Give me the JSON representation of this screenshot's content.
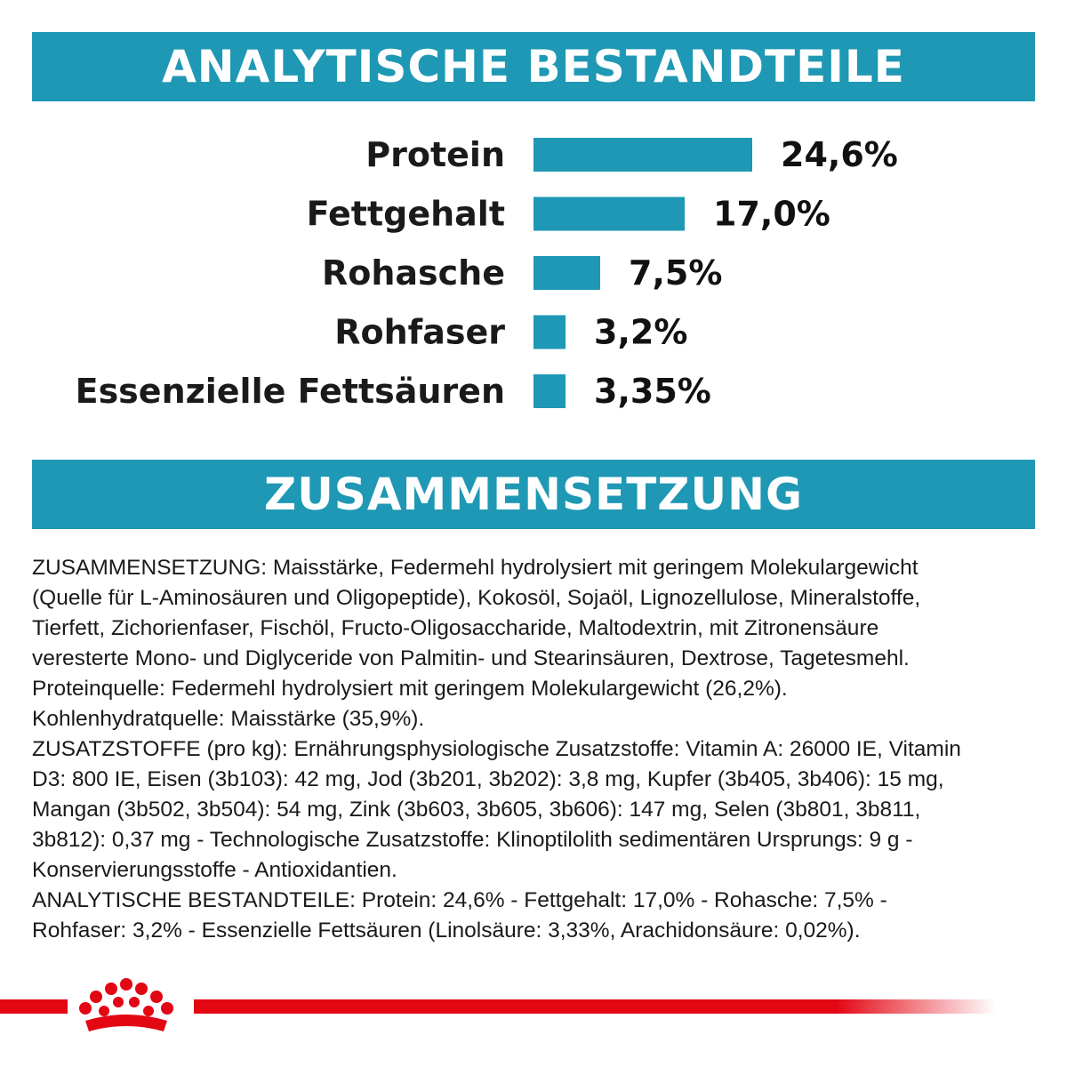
{
  "header": {
    "analytics_title": "ANALYTISCHE BESTANDTEILE",
    "composition_title": "ZUSAMMENSETZUNG"
  },
  "colors": {
    "banner": "#1e98b4",
    "bar": "#1e98b4",
    "brand_red": "#e30613"
  },
  "chart_data": {
    "type": "bar",
    "orientation": "horizontal",
    "title": "ANALYTISCHE BESTANDTEILE",
    "categories": [
      "Protein",
      "Fettgehalt",
      "Rohasche",
      "Rohfaser",
      "Essenzielle Fettsäuren"
    ],
    "values": [
      24.6,
      17.0,
      7.5,
      3.2,
      3.35
    ],
    "value_labels": [
      "24,6%",
      "17,0%",
      "7,5%",
      "3,2%",
      "3,35%"
    ],
    "xlim": [
      0,
      24.6
    ],
    "grid": false,
    "legend": "none"
  },
  "composition": {
    "lines": [
      "ZUSAMMENSETZUNG: Maisstärke, Federmehl hydrolysiert mit geringem Molekulargewicht",
      "(Quelle für L-Aminosäuren und Oligopeptide), Kokosöl, Sojaöl, Lignozellulose, Mineralstoffe,",
      "Tierfett, Zichorienfaser, Fischöl, Fructo-Oligosaccharide, Maltodextrin, mit Zitronensäure",
      "veresterte Mono- und Diglyceride von Palmitin- und Stearinsäuren, Dextrose, Tagetesmehl.",
      "Proteinquelle: Federmehl hydrolysiert mit geringem Molekulargewicht (26,2%).",
      "Kohlenhydratquelle: Maisstärke (35,9%).",
      "ZUSATZSTOFFE (pro kg): Ernährungsphysiologische Zusatzstoffe: Vitamin A: 26000 IE, Vitamin",
      "D3: 800 IE, Eisen (3b103): 42 mg, Jod (3b201, 3b202): 3,8 mg, Kupfer (3b405, 3b406): 15 mg,",
      "Mangan (3b502, 3b504): 54 mg, Zink (3b603, 3b605, 3b606): 147 mg, Selen (3b801, 3b811,",
      "3b812): 0,37 mg - Technologische Zusatzstoffe: Klinoptilolith sedimentären Ursprungs: 9 g -",
      "Konservierungsstoffe - Antioxidantien.",
      "ANALYTISCHE BESTANDTEILE: Protein: 24,6% - Fettgehalt: 17,0% - Rohasche: 7,5% -",
      "Rohfaser: 3,2% - Essenzielle Fettsäuren (Linolsäure: 3,33%, Arachidonsäure: 0,02%)."
    ]
  },
  "footer": {
    "logo_icon": "crown-icon"
  }
}
